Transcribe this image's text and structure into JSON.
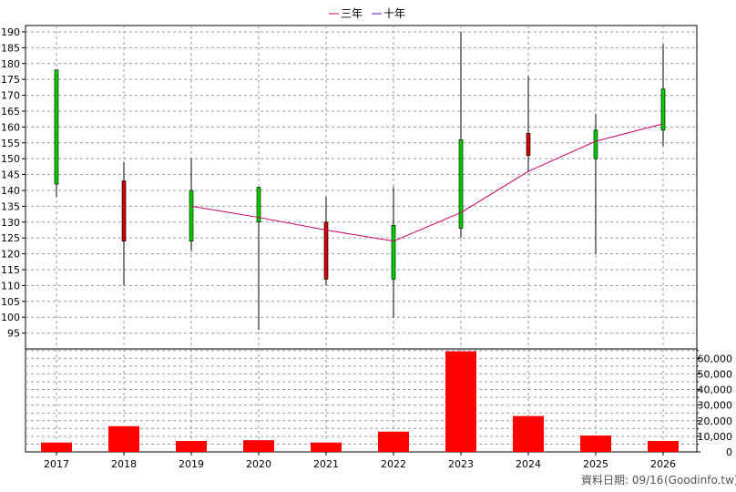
{
  "legend": {
    "items": [
      {
        "label": "三年",
        "color": "#cc0066"
      },
      {
        "label": "十年",
        "color": "#6600cc"
      }
    ]
  },
  "footer": {
    "date_text": "資料日期: 09/16",
    "source_text": "(Goodinfo.tw)"
  },
  "colors": {
    "up": "#00cc00",
    "down": "#cc0000",
    "volume": "#ff0000",
    "wick": "#000000",
    "grid": "#999999"
  },
  "chart_data": [
    {
      "type": "candlestick",
      "title": "",
      "categories": [
        "2017",
        "2018",
        "2019",
        "2020",
        "2021",
        "2022",
        "2023",
        "2024",
        "2025",
        "2026"
      ],
      "ylim": [
        90,
        192
      ],
      "yticks": [
        95,
        100,
        105,
        110,
        115,
        120,
        125,
        130,
        135,
        140,
        145,
        150,
        155,
        160,
        165,
        170,
        175,
        180,
        185,
        190
      ],
      "candles": [
        {
          "x": "2017",
          "open": 142,
          "close": 178,
          "high": 178,
          "low": 138
        },
        {
          "x": "2018",
          "open": 143,
          "close": 124,
          "high": 149,
          "low": 110
        },
        {
          "x": "2019",
          "open": 124,
          "close": 140,
          "high": 150,
          "low": 121
        },
        {
          "x": "2020",
          "open": 130,
          "close": 141,
          "high": 141,
          "low": 96
        },
        {
          "x": "2021",
          "open": 130,
          "close": 112,
          "high": 138,
          "low": 110
        },
        {
          "x": "2022",
          "open": 112,
          "close": 129,
          "high": 141,
          "low": 100
        },
        {
          "x": "2023",
          "open": 128,
          "close": 156,
          "high": 190,
          "low": 125
        },
        {
          "x": "2024",
          "open": 158,
          "close": 151,
          "high": 176,
          "low": 146
        },
        {
          "x": "2025",
          "open": 150,
          "close": 159,
          "high": 164,
          "low": 120
        },
        {
          "x": "2026",
          "open": 159,
          "close": 172,
          "high": 186,
          "low": 154
        }
      ],
      "series": [
        {
          "name": "三年",
          "x": [
            "2019",
            "2020",
            "2021",
            "2022",
            "2023",
            "2024",
            "2025",
            "2026"
          ],
          "values": [
            135,
            131.5,
            127.5,
            124,
            133,
            146,
            155.5,
            161
          ]
        }
      ]
    },
    {
      "type": "bar",
      "categories": [
        "2017",
        "2018",
        "2019",
        "2020",
        "2021",
        "2022",
        "2023",
        "2024",
        "2025",
        "2026"
      ],
      "values": [
        6000,
        16500,
        7000,
        7500,
        6000,
        13000,
        64500,
        23000,
        10500,
        7000
      ],
      "ylim": [
        0,
        66000
      ],
      "yticks": [
        0,
        10000,
        20000,
        30000,
        40000,
        50000,
        60000
      ],
      "ytick_labels": [
        "0",
        "10,000",
        "20,000",
        "30,000",
        "40,000",
        "50,000",
        "60,000"
      ]
    }
  ]
}
